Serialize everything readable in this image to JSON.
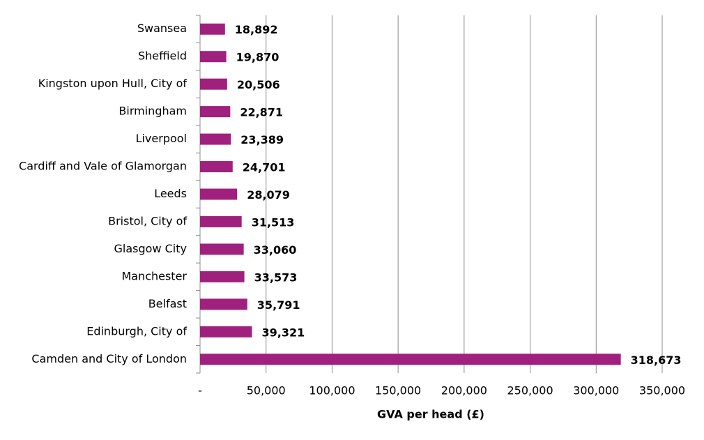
{
  "chart_data": {
    "type": "hbar",
    "x_label": "GVA per head (£)",
    "categories": [
      "Swansea",
      "Sheffield",
      "Kingston upon Hull, City of",
      "Birmingham",
      "Liverpool",
      "Cardiff and Vale of Glamorgan",
      "Leeds",
      "Bristol, City of",
      "Glasgow City",
      "Manchester",
      "Belfast",
      "Edinburgh, City of",
      "Camden and City of London"
    ],
    "values": [
      18892,
      19870,
      20506,
      22871,
      23389,
      24701,
      28079,
      31513,
      33060,
      33573,
      35791,
      39321,
      318673
    ],
    "value_labels": [
      "18,892",
      "19,870",
      "20,506",
      "22,871",
      "23,389",
      "24,701",
      "28,079",
      "31,513",
      "33,060",
      "33,573",
      "35,791",
      "39,321",
      "318,673"
    ],
    "color": "#a0207e",
    "xlim": [
      0,
      350000
    ],
    "xticks": [
      {
        "value": 0,
        "label": "-"
      },
      {
        "value": 50000,
        "label": "50,000"
      },
      {
        "value": 100000,
        "label": "100,000"
      },
      {
        "value": 150000,
        "label": "150,000"
      },
      {
        "value": 200000,
        "label": "200,000"
      },
      {
        "value": 250000,
        "label": "250,000"
      },
      {
        "value": 300000,
        "label": "300,000"
      },
      {
        "value": 350000,
        "label": "350,000"
      }
    ],
    "grid": true
  }
}
